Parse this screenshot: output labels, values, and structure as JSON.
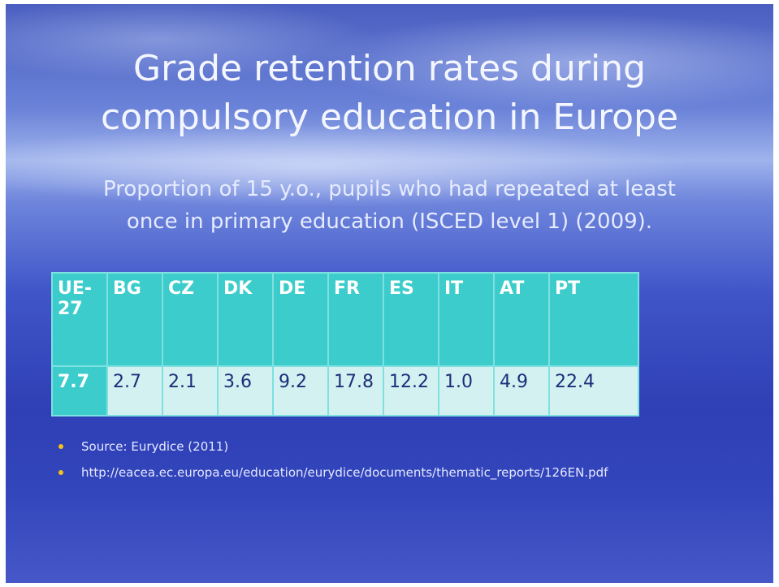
{
  "slide": {
    "title": [
      "Grade retention rates during",
      "compulsory education in Europe"
    ],
    "subtitle": [
      "Proportion of 15 y.o., pupils who had repeated at least",
      "once in primary education (ISCED level 1) (2009)."
    ],
    "table": {
      "header": [
        "UE-27",
        "BG",
        "CZ",
        "DK",
        "DE",
        "FR",
        "ES",
        "IT",
        "AT",
        "PT"
      ],
      "rows": [
        [
          "7.7",
          "2.7",
          "2.1",
          "3.6",
          "9.2",
          "17.8",
          "12.2",
          "1.0",
          "4.9",
          "22.4"
        ]
      ]
    },
    "bullets": [
      "Source: Eurydice (2011)",
      "http://eacea.ec.europa.eu/education/eurydice/documents/thematic_reports/126EN.pdf"
    ]
  }
}
